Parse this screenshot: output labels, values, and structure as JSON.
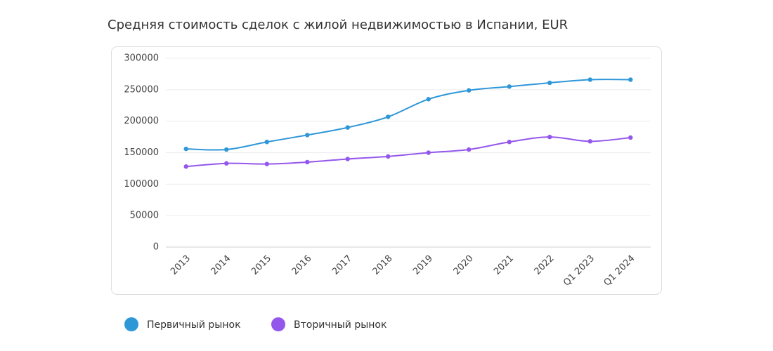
{
  "chart_data": {
    "type": "line",
    "title": "Средняя стоимость сделок с жилой недвижимостью в Испании, EUR",
    "categories": [
      "2013",
      "2014",
      "2015",
      "2016",
      "2017",
      "2018",
      "2019",
      "2020",
      "2021",
      "2022",
      "Q1 2023",
      "Q1 2024"
    ],
    "series": [
      {
        "name": "Первичный рынок",
        "color": "#2e97d8",
        "values": [
          156000,
          155000,
          167000,
          178000,
          190000,
          207000,
          235000,
          249000,
          255000,
          261000,
          266000,
          266000
        ]
      },
      {
        "name": "Вторичный рынок",
        "color": "#9457ec",
        "values": [
          128000,
          133000,
          132000,
          135000,
          140000,
          144000,
          150000,
          155000,
          167000,
          175000,
          168000,
          174000
        ]
      }
    ],
    "ylim": [
      0,
      300000
    ],
    "yticks": [
      0,
      50000,
      100000,
      150000,
      200000,
      250000,
      300000
    ],
    "grid": true,
    "legend": "bottom"
  }
}
